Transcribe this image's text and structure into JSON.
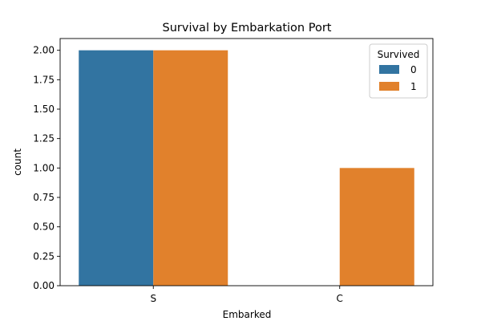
{
  "chart_data": {
    "type": "bar",
    "title": "Survival by Embarkation Port",
    "xlabel": "Embarked",
    "ylabel": "count",
    "categories": [
      "S",
      "C"
    ],
    "series": [
      {
        "name": "0",
        "color": "#3274a1",
        "values": [
          2,
          0
        ]
      },
      {
        "name": "1",
        "color": "#e1812c",
        "values": [
          2,
          1
        ]
      }
    ],
    "ylim": [
      0,
      2.1
    ],
    "yticks": [
      "0.00",
      "0.25",
      "0.50",
      "0.75",
      "1.00",
      "1.25",
      "1.50",
      "1.75",
      "2.00"
    ],
    "legend": {
      "title": "Survived",
      "placement": "top-right"
    },
    "grid": false
  }
}
